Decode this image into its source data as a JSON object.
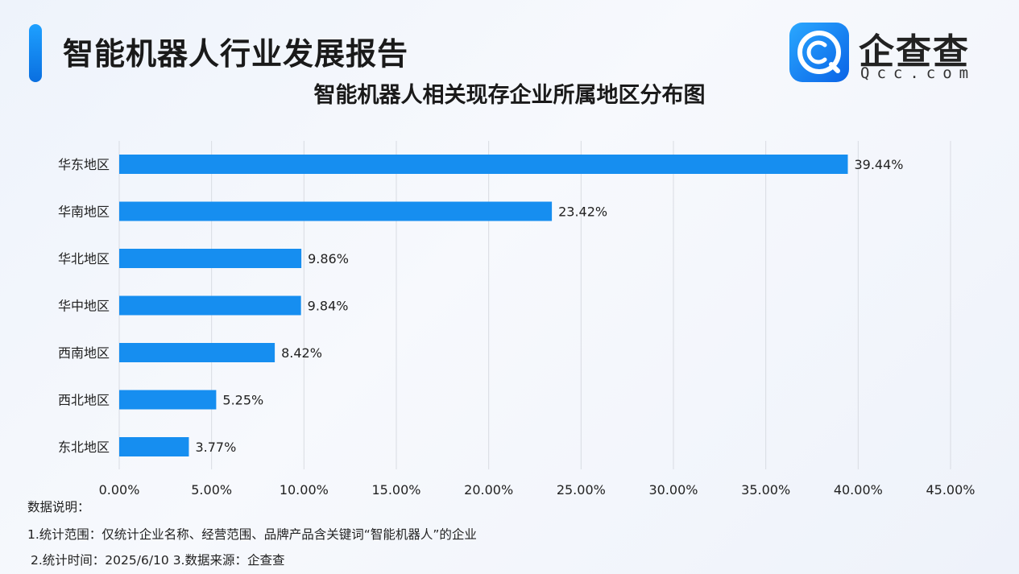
{
  "header": {
    "report_title": "智能机器人行业发展报告",
    "brand_name": "企查查",
    "brand_domain": "Qcc.com"
  },
  "colors": {
    "bar": "#168ef0",
    "grid": "#d8dbe2",
    "accent": "#0a7ff0"
  },
  "chart_data": {
    "type": "bar",
    "orientation": "horizontal",
    "title": "智能机器人相关现存企业所属地区分布图",
    "categories": [
      "华东地区",
      "华南地区",
      "华北地区",
      "华中地区",
      "西南地区",
      "西北地区",
      "东北地区"
    ],
    "values": [
      39.44,
      23.42,
      9.86,
      9.84,
      8.42,
      5.25,
      3.77
    ],
    "value_labels": [
      "39.44%",
      "23.42%",
      "9.86%",
      "9.84%",
      "8.42%",
      "5.25%",
      "3.77%"
    ],
    "xlim": [
      0,
      45
    ],
    "x_ticks": [
      0,
      5,
      10,
      15,
      20,
      25,
      30,
      35,
      40,
      45
    ],
    "x_tick_labels": [
      "0.00%",
      "5.00%",
      "10.00%",
      "15.00%",
      "20.00%",
      "25.00%",
      "30.00%",
      "35.00%",
      "40.00%",
      "45.00%"
    ],
    "grid": "vertical"
  },
  "notes": {
    "heading": "数据说明：",
    "line1": "1.统计范围：仅统计企业名称、经营范围、品牌产品含关键词“智能机器人”的企业",
    "line2": "2.统计时间：2025/6/10  3.数据来源：企查查"
  }
}
